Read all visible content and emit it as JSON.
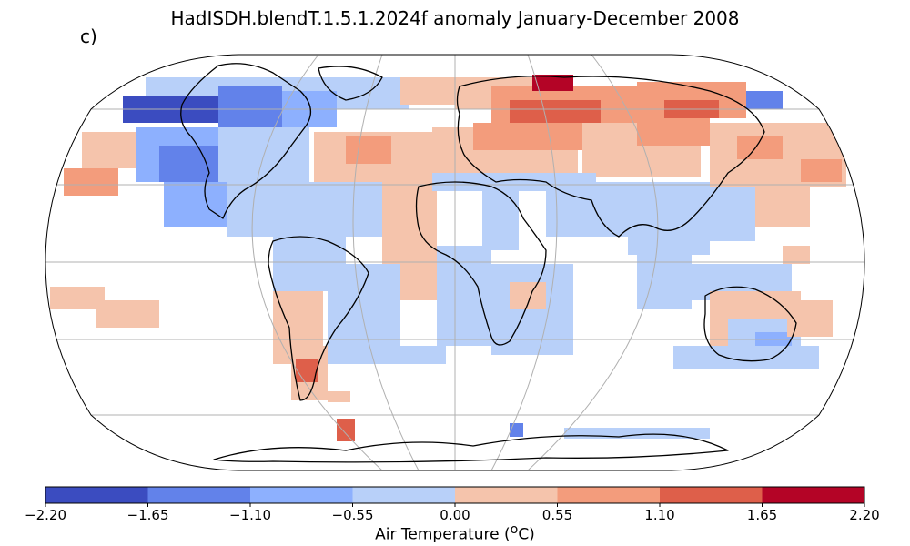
{
  "title": "HadISDH.blendT.1.5.1.2024f anomaly January-December 2008",
  "panel_label": "c)",
  "colorbar": {
    "label_prefix": "Air Temperature (",
    "label_sup": "o",
    "label_suffix": "C)",
    "ticks": [
      "−2.20",
      "−1.65",
      "−1.10",
      "−0.55",
      "0.00",
      "0.55",
      "1.10",
      "1.65",
      "2.20"
    ],
    "colors": [
      "#3b4cc0",
      "#6282ea",
      "#8db0fe",
      "#b8d0f9",
      "#f5c4ac",
      "#f39c7c",
      "#de5f4a",
      "#b40426"
    ]
  },
  "map": {
    "projection": "Robinson",
    "graticule": "30 degree meridians and parallels",
    "missing_color": "#ffffff",
    "coastline_color": "#000000"
  }
}
